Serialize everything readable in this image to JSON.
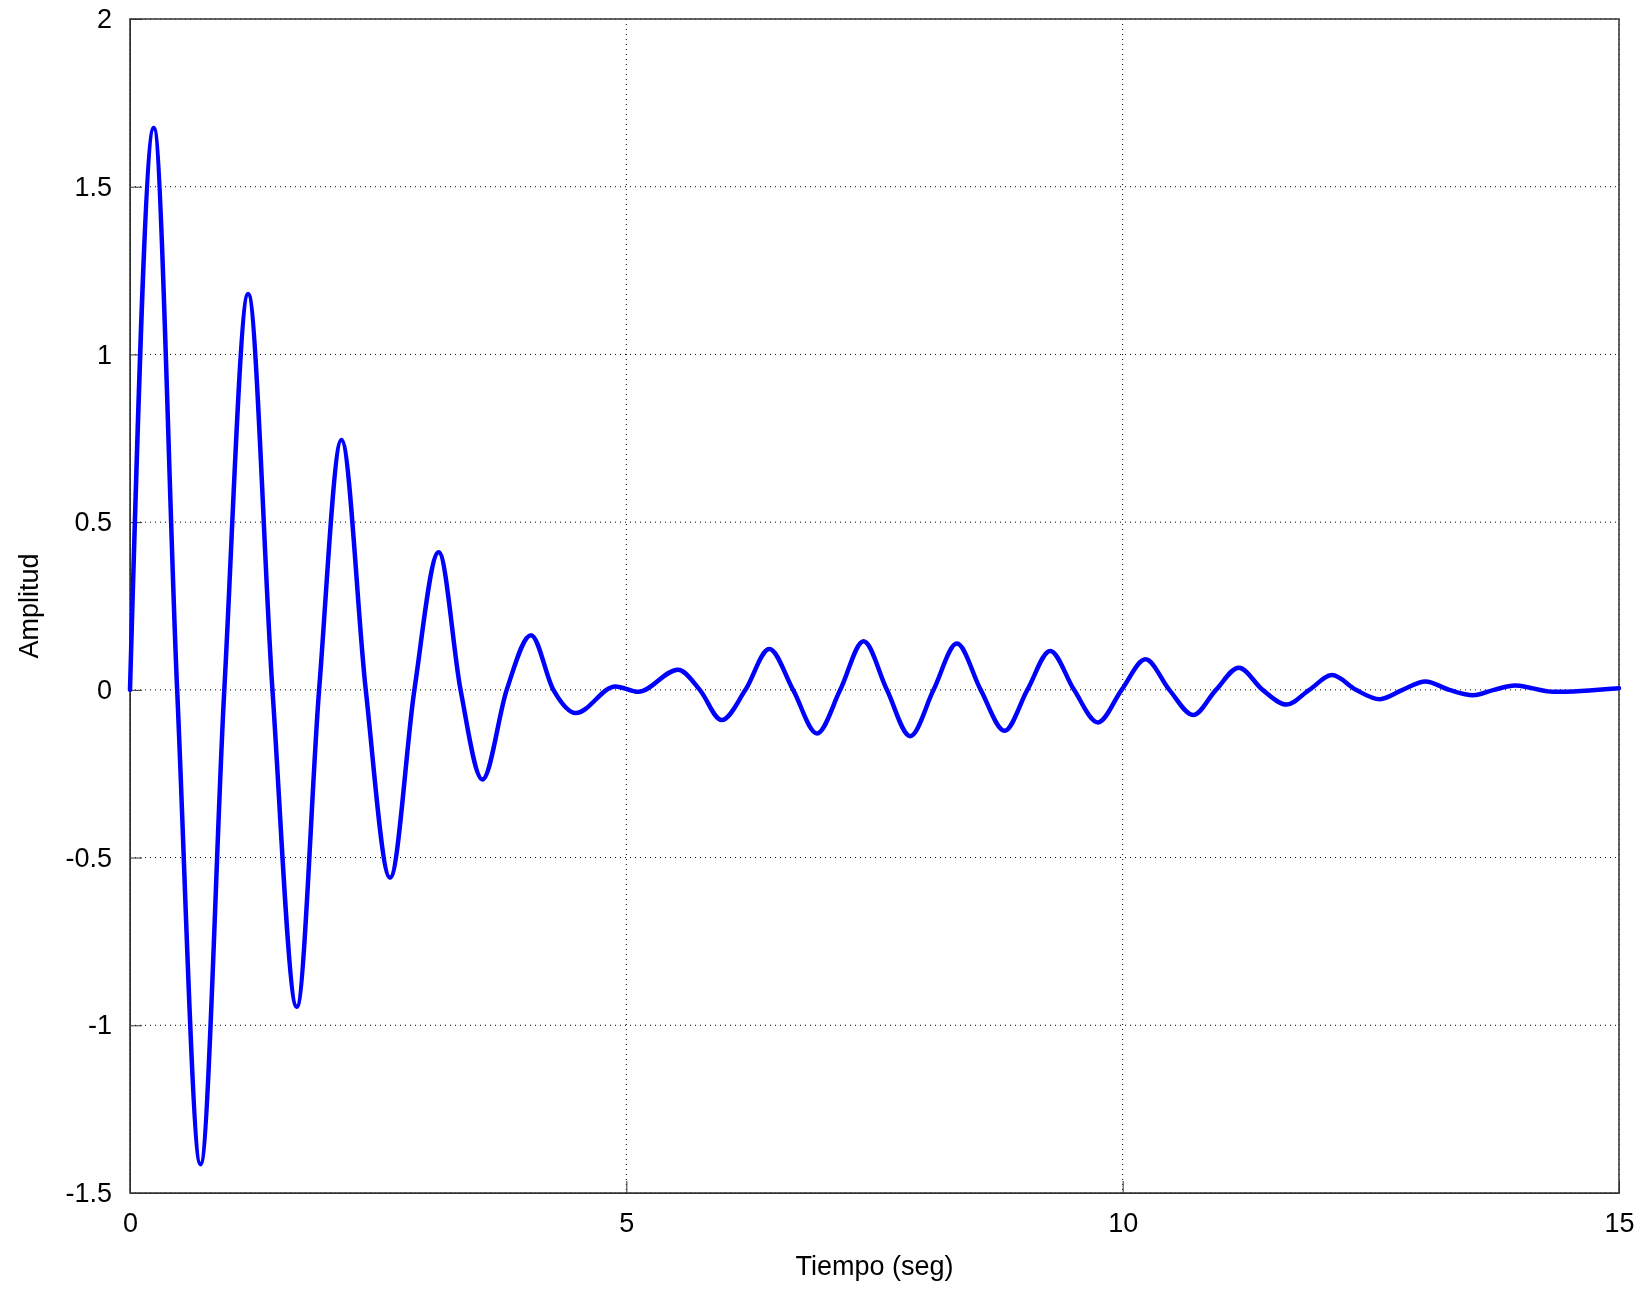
{
  "chart_data": {
    "type": "line",
    "xlabel": "Tiempo (seg)",
    "ylabel": "Amplitud",
    "xlim": [
      0,
      15
    ],
    "xticks": [
      0,
      5,
      10,
      15
    ],
    "ylim": [
      -1.5,
      2
    ],
    "yticks": [
      -1.5,
      -1,
      -0.5,
      0,
      0.5,
      1,
      1.5,
      2
    ],
    "grid": true,
    "line_style": "solid",
    "series": [
      {
        "color": "#0000ff",
        "x": [
          0,
          0.24,
          0.475,
          0.71,
          0.95,
          1.19,
          1.435,
          1.68,
          1.905,
          2.13,
          2.375,
          2.62,
          2.865,
          3.11,
          3.33,
          3.55,
          3.795,
          4.04,
          4.265,
          4.49,
          4.89,
          5.12,
          5.52,
          5.74,
          5.96,
          6.2,
          6.44,
          6.68,
          6.92,
          7.155,
          7.39,
          7.625,
          7.86,
          8.095,
          8.33,
          8.57,
          8.81,
          9.04,
          9.27,
          9.51,
          9.75,
          9.99,
          10.23,
          10.47,
          10.71,
          10.94,
          11.17,
          11.41,
          11.65,
          11.88,
          12.11,
          12.35,
          12.59,
          12.82,
          13.05,
          13.29,
          13.53,
          13.74,
          13.95,
          14.34,
          15
        ],
        "values": [
          0,
          1.675,
          0,
          -1.414,
          0,
          1.18,
          0,
          -0.945,
          0,
          0.745,
          0,
          -0.56,
          0,
          0.41,
          0,
          -0.267,
          0,
          0.163,
          0,
          -0.069,
          0.01,
          -0.006,
          0.06,
          0,
          -0.09,
          0,
          0.122,
          0,
          -0.13,
          0,
          0.145,
          0,
          -0.138,
          0,
          0.138,
          0,
          -0.122,
          0,
          0.116,
          0,
          -0.097,
          0,
          0.091,
          0,
          -0.075,
          0,
          0.066,
          0,
          -0.044,
          0,
          0.044,
          0,
          -0.028,
          0,
          0.025,
          0,
          -0.016,
          0,
          0.013,
          -0.006,
          0.005
        ]
      }
    ]
  }
}
